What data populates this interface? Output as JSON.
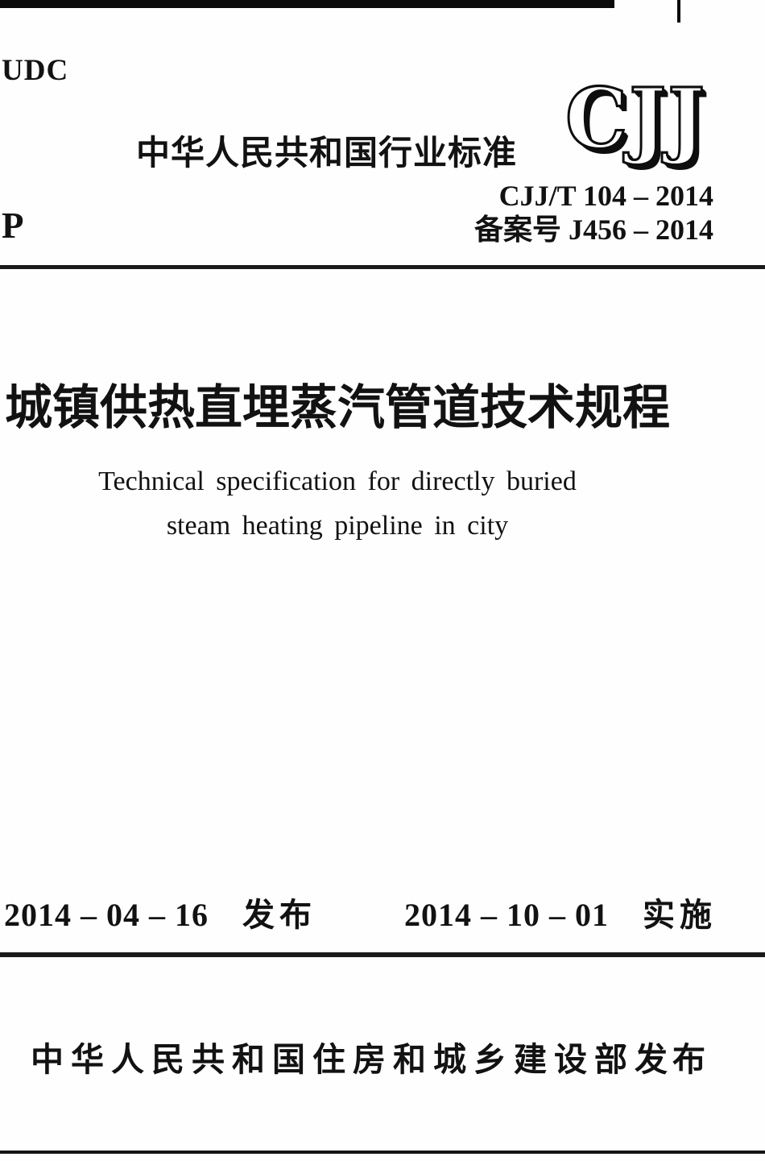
{
  "page": {
    "background": "#fefefe",
    "ink": "#121212"
  },
  "header": {
    "udc_label": "UDC",
    "standard_type_cn": "中华人民共和国行业标准",
    "logo_text": "CJJ",
    "standard_number": "CJJ/T 104 – 2014",
    "record_number": "备案号 J456 – 2014",
    "p_label": "P"
  },
  "title": {
    "chinese": "城镇供热直埋蒸汽管道技术规程",
    "english_line1": "Technical specification for directly buried",
    "english_line2": "steam heating pipeline in city"
  },
  "dates": {
    "issue_date": "2014 – 04 – 16",
    "issue_label": "发布",
    "implement_date": "2014 – 10 – 01",
    "implement_label": "实施"
  },
  "publisher": {
    "name": "中华人民共和国住房和城乡建设部",
    "action_label": "发布"
  }
}
